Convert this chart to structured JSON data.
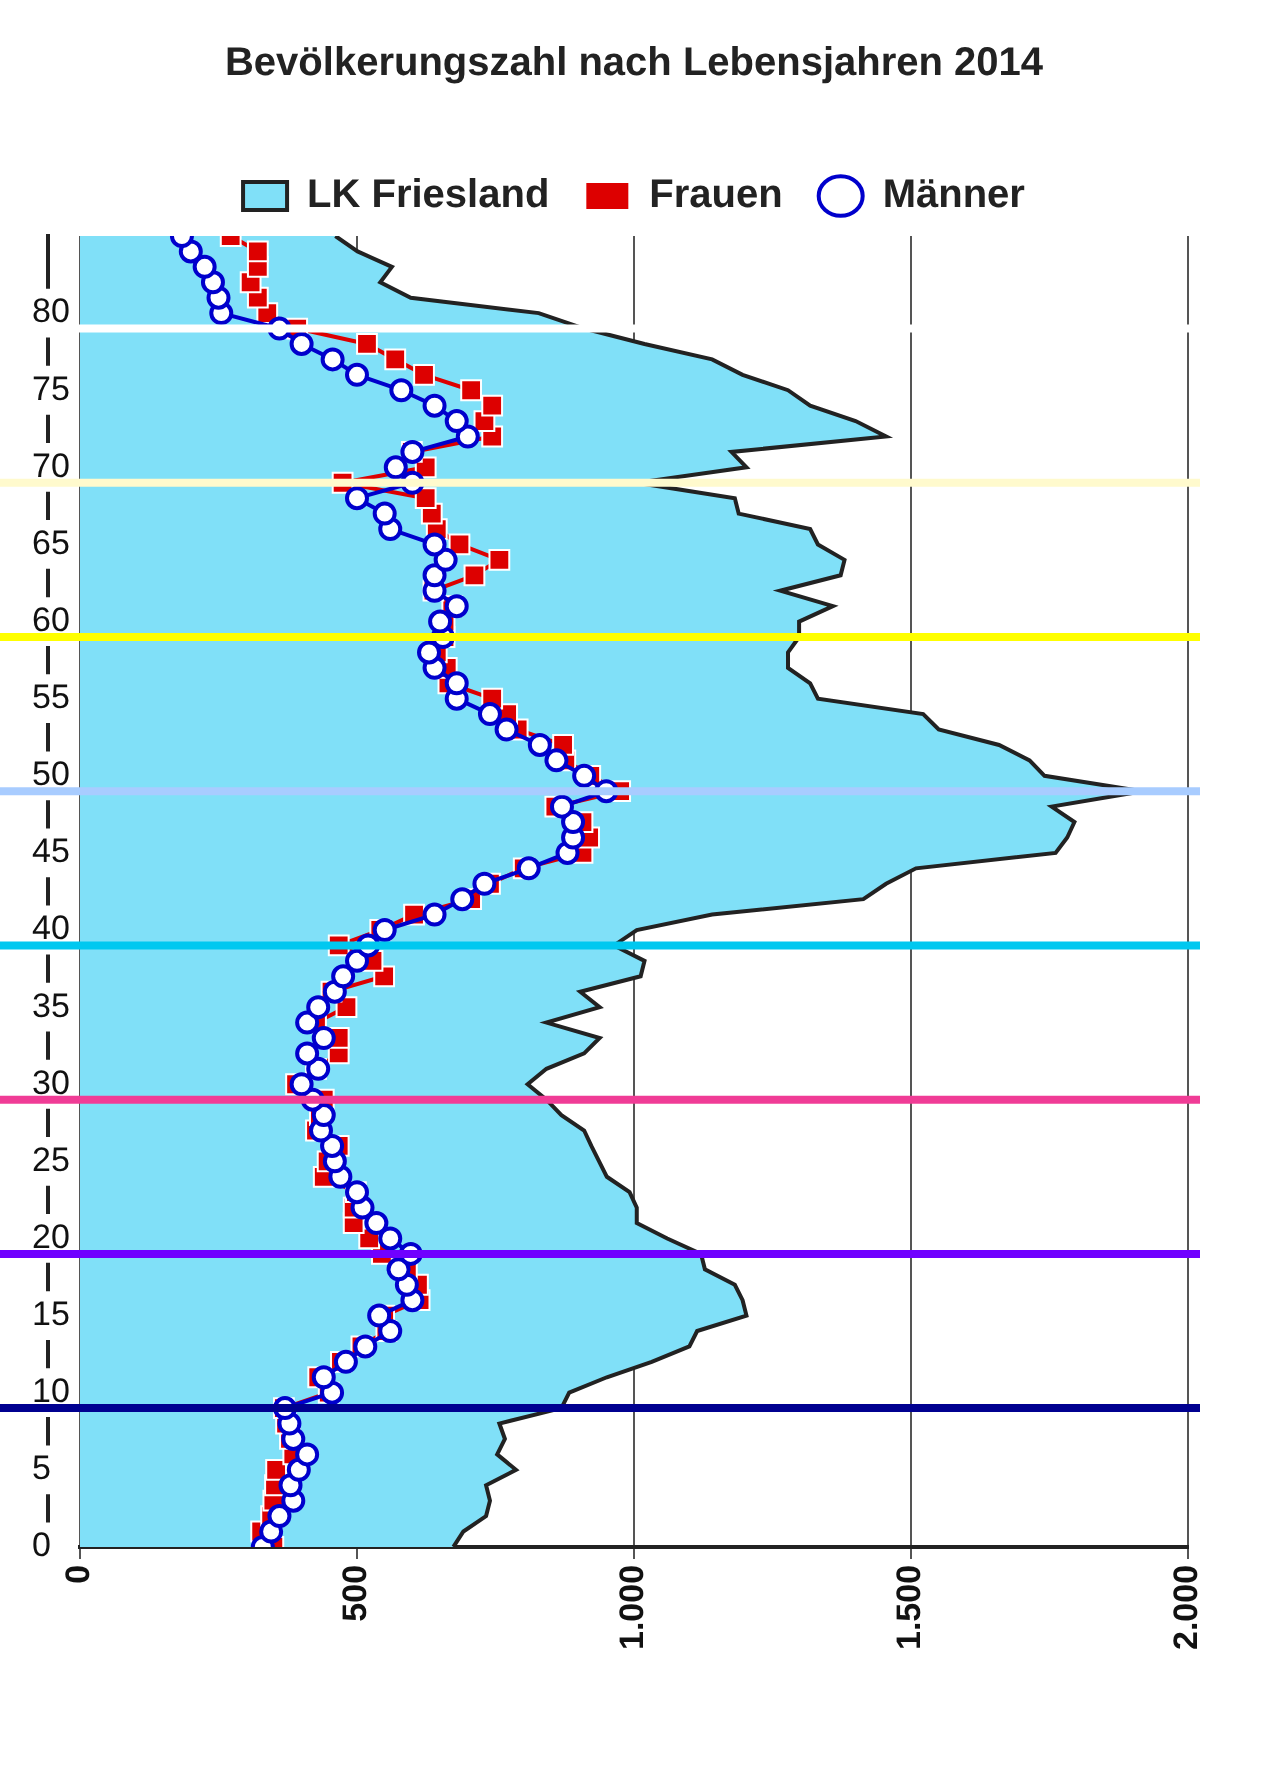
{
  "chart_data": {
    "type": "area",
    "title": "Bevölkerungszahl nach Lebensjahren 2014",
    "orientation": "horizontal",
    "x": [
      0,
      1,
      2,
      3,
      4,
      5,
      6,
      7,
      8,
      9,
      10,
      11,
      12,
      13,
      14,
      15,
      16,
      17,
      18,
      19,
      20,
      21,
      22,
      23,
      24,
      25,
      26,
      27,
      28,
      29,
      30,
      31,
      32,
      33,
      34,
      35,
      36,
      37,
      38,
      39,
      40,
      41,
      42,
      43,
      44,
      45,
      46,
      47,
      48,
      49,
      50,
      51,
      52,
      53,
      54,
      55,
      56,
      57,
      58,
      59,
      60,
      61,
      62,
      63,
      64,
      65,
      66,
      67,
      68,
      69,
      70,
      71,
      72,
      73,
      74,
      75,
      76,
      77,
      78,
      79,
      80,
      81,
      82,
      83,
      84,
      85
    ],
    "series": [
      {
        "name": "LK Friesland",
        "type": "area",
        "color": "#80e0f8",
        "values": [
          674,
          692,
          733,
          740,
          733,
          787,
          753,
          767,
          757,
          869,
          883,
          951,
          1032,
          1100,
          1114,
          1203,
          1196,
          1182,
          1128,
          1121,
          1060,
          1005,
          1005,
          992,
          951,
          937,
          923,
          910,
          869,
          842,
          808,
          842,
          910,
          938,
          842,
          938,
          903,
          1012,
          1019,
          964,
          1005,
          1141,
          1414,
          1455,
          1509,
          1761,
          1782,
          1795,
          1754,
          1918,
          1741,
          1714,
          1659,
          1550,
          1522,
          1332,
          1318,
          1278,
          1278,
          1298,
          1298,
          1359,
          1264,
          1373,
          1380,
          1332,
          1318,
          1189,
          1182,
          1005,
          1203,
          1176,
          1455,
          1400,
          1318,
          1278,
          1196,
          1141,
          1019,
          910,
          828,
          597,
          542,
          563,
          501,
          461
        ]
      },
      {
        "name": "Frauen",
        "type": "line",
        "color": "#dd0000",
        "marker": "square",
        "values": [
          349,
          327,
          345,
          349,
          352,
          354,
          385,
          379,
          372,
          368,
          449,
          430,
          471,
          508,
          553,
          549,
          613,
          610,
          590,
          545,
          522,
          494,
          494,
          498,
          440,
          447,
          467,
          426,
          433,
          440,
          390,
          426,
          467,
          467,
          426,
          481,
          454,
          549,
          528,
          467,
          542,
          603,
          706,
          740,
          801,
          907,
          919,
          907,
          858,
          975,
          921,
          876,
          872,
          790,
          771,
          744,
          665,
          662,
          644,
          658,
          658,
          672,
          638,
          712,
          757,
          685,
          644,
          635,
          624,
          474,
          624,
          599,
          744,
          730,
          744,
          706,
          621,
          569,
          518,
          392,
          338,
          321,
          308,
          321,
          321,
          272
        ]
      },
      {
        "name": "Männer",
        "type": "line",
        "color": "#0000cc",
        "marker": "circle",
        "values": [
          330,
          345,
          360,
          385,
          380,
          395,
          410,
          385,
          378,
          370,
          455,
          440,
          480,
          515,
          560,
          540,
          600,
          590,
          575,
          597,
          560,
          535,
          510,
          500,
          470,
          460,
          455,
          435,
          440,
          420,
          400,
          430,
          410,
          440,
          410,
          430,
          460,
          475,
          500,
          520,
          550,
          640,
          690,
          730,
          810,
          880,
          890,
          890,
          870,
          950,
          910,
          860,
          830,
          770,
          740,
          680,
          680,
          640,
          630,
          655,
          650,
          680,
          640,
          640,
          660,
          640,
          560,
          550,
          500,
          600,
          570,
          600,
          700,
          680,
          640,
          580,
          500,
          456,
          400,
          360,
          255,
          250,
          240,
          225,
          200,
          184
        ]
      }
    ],
    "xlim": [
      0,
      2000
    ],
    "xticks": [
      0,
      500,
      {
        "value": 1000,
        "label": "1.000"
      },
      {
        "value": 1500,
        "label": "1.500"
      },
      {
        "value": 2000,
        "label": "2.000"
      }
    ],
    "ylim": [
      0,
      85
    ],
    "yticks": [
      0,
      5,
      10,
      15,
      20,
      25,
      30,
      35,
      40,
      45,
      50,
      55,
      60,
      65,
      70,
      75,
      80
    ],
    "grid": "x",
    "legend": "top",
    "ref_lines": [
      {
        "axis": "y",
        "value": 9,
        "color": "#000090"
      },
      {
        "axis": "y",
        "value": 19,
        "color": "#7000ff"
      },
      {
        "axis": "y",
        "value": 29,
        "color": "#f03c96"
      },
      {
        "axis": "y",
        "value": 39,
        "color": "#00c8f0"
      },
      {
        "axis": "y",
        "value": 49,
        "color": "#a8ccff"
      },
      {
        "axis": "y",
        "value": 59,
        "color": "#ffff00"
      },
      {
        "axis": "y",
        "value": 69,
        "color": "#fffacd"
      },
      {
        "axis": "y",
        "value": 79,
        "color": "#ffffff"
      }
    ]
  }
}
